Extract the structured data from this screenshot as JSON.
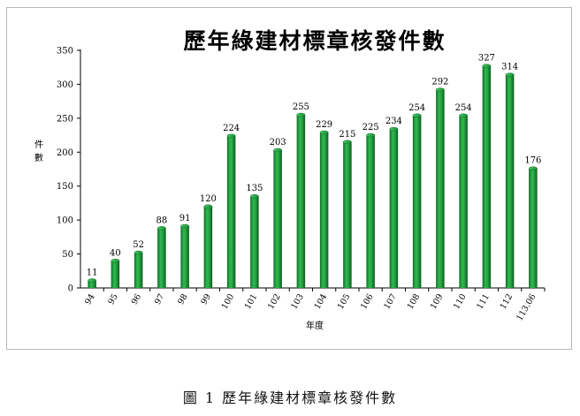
{
  "caption": "圖 1 歷年綠建材標章核發件數",
  "chart_data": {
    "type": "bar",
    "title": "歷年綠建材標章核發件數",
    "xlabel": "年度",
    "ylabel": "件數",
    "categories": [
      "94",
      "95",
      "96",
      "97",
      "98",
      "99",
      "100",
      "101",
      "102",
      "103",
      "104",
      "105",
      "106",
      "107",
      "108",
      "109",
      "110",
      "111",
      "112",
      "113.06"
    ],
    "values": [
      11,
      40,
      52,
      88,
      91,
      120,
      224,
      135,
      203,
      255,
      229,
      215,
      225,
      234,
      254,
      292,
      254,
      327,
      314,
      176
    ],
    "ylim": [
      0,
      350
    ],
    "yticks": [
      0,
      50,
      100,
      150,
      200,
      250,
      300,
      350
    ],
    "grid": false,
    "legend": "none",
    "bar_color": "#1f9a3c"
  }
}
